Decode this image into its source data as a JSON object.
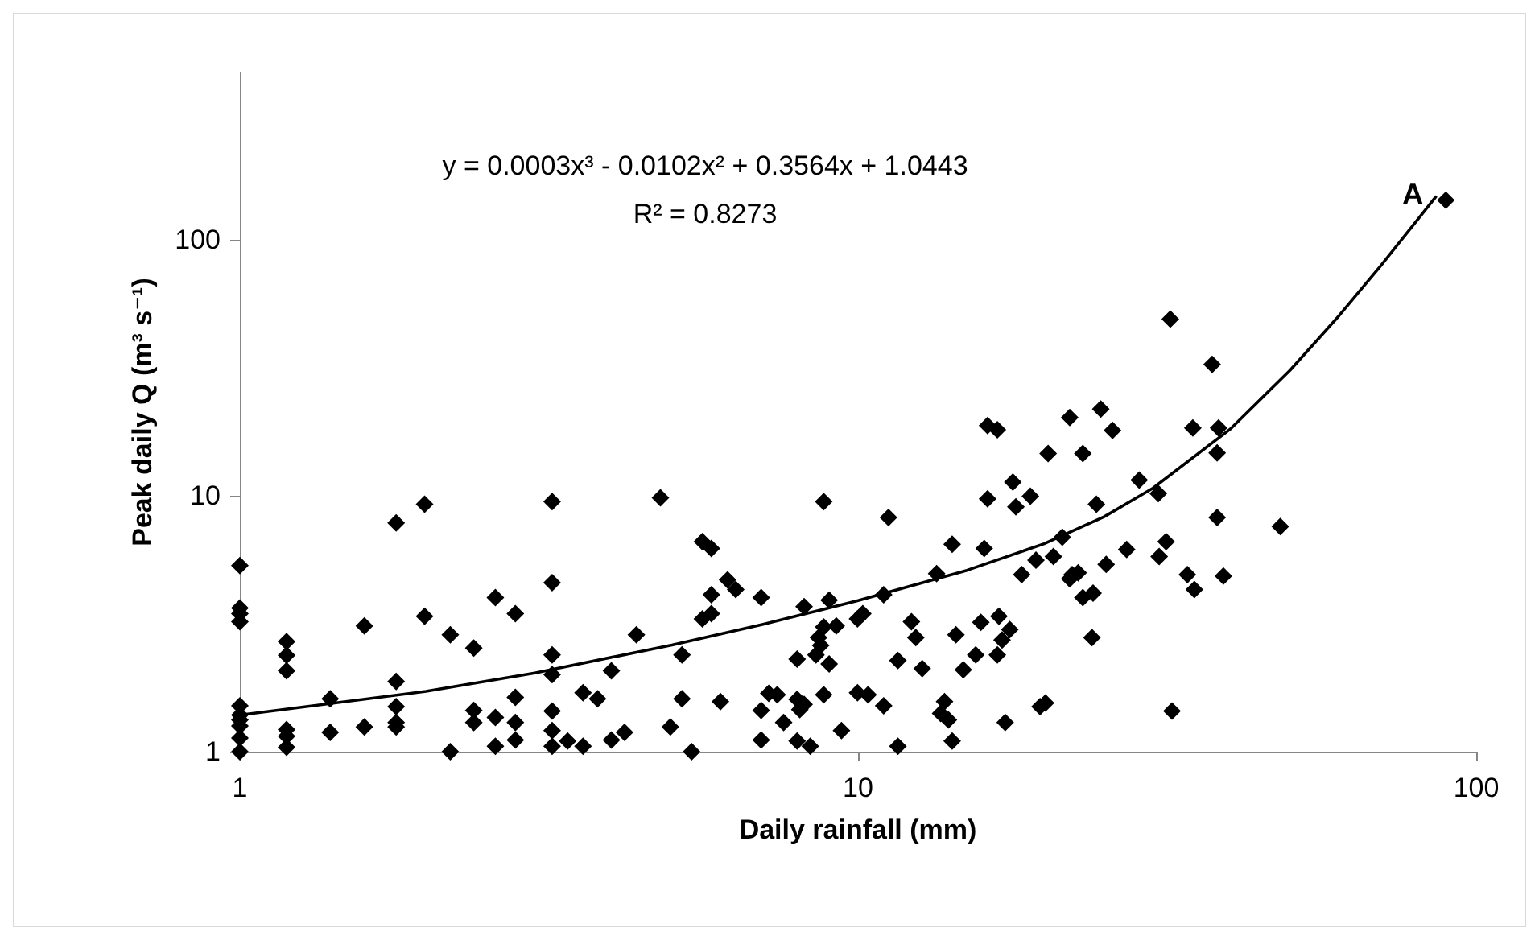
{
  "chart_data": {
    "type": "scatter",
    "xlabel": "Daily rainfall (mm)",
    "ylabel": "Peak daily Q (m³ s⁻¹)",
    "log": "xy",
    "xlim": [
      1,
      100
    ],
    "xticks": [
      1,
      10,
      100
    ],
    "ylim": [
      1,
      450
    ],
    "yticks": [
      1,
      10,
      100
    ],
    "grid": false,
    "annotations": [
      "y = 0.0003x³ - 0.0102x² + 0.3564x + 1.0443",
      "R² = 0.8273",
      {
        "text": "A",
        "x": 89.3,
        "y": 142.6
      }
    ],
    "series": [
      {
        "marker": "diamond",
        "color": "#000000",
        "x": [
          1,
          1,
          1,
          1,
          1,
          1,
          1,
          1,
          1,
          1,
          1.19,
          1.19,
          1.19,
          1.19,
          1.19,
          1.19,
          1.4,
          1.4,
          1.59,
          1.59,
          1.79,
          1.79,
          1.79,
          1.79,
          1.79,
          1.99,
          1.99,
          2.19,
          2.19,
          2.39,
          2.39,
          2.39,
          2.59,
          2.59,
          2.59,
          2.79,
          2.79,
          2.79,
          2.79,
          3.2,
          3.2,
          3.2,
          3.2,
          3.2,
          3.2,
          3.2,
          3.39,
          3.59,
          3.59,
          3.79,
          3.99,
          3.99,
          4.19,
          4.38,
          4.79,
          4.97,
          5.19,
          5.19,
          5.38,
          5.6,
          5.79,
          5.6,
          5.79,
          5.79,
          5.99,
          6.15,
          6.34,
          6.97,
          6.97,
          6.97,
          7.17,
          7.4,
          7.58,
          7.97,
          7.97,
          8.05,
          8.18,
          7.97,
          8.37,
          8.18,
          8.8,
          8.98,
          8.8,
          8.63,
          8.7,
          8.55,
          8.98,
          9.22,
          8.8,
          9.4,
          9.98,
          10.18,
          9.98,
          10.38,
          11,
          11,
          11.2,
          11.6,
          11.6,
          12.2,
          12.4,
          12.7,
          13.4,
          13.8,
          13.6,
          14,
          14.2,
          14.2,
          14.4,
          14.8,
          15.5,
          15.8,
          16,
          16.2,
          16.8,
          16.9,
          17.1,
          17.6,
          17.3,
          17.8,
          18,
          19,
          18.4,
          19.4,
          19.7,
          20.1,
          20.3,
          20.7,
          21.4,
          22.2,
          22.7,
          23.1,
          23.1,
          23.9,
          22,
          24,
          24.3,
          28.5,
          30.6,
          38.1,
          38.1,
          48.2,
          25.2,
          27.2,
          30.7,
          31.5,
          34.1,
          35,
          39,
          32.2,
          89.3,
          32,
          37.4,
          16.2,
          16.8,
          22,
          24.7,
          25.8,
          34.8,
          38.3
        ],
        "values": [
          5.33,
          3.64,
          3.46,
          3.22,
          1.51,
          1.39,
          1.33,
          1.26,
          1.13,
          1,
          2.69,
          2.38,
          2.07,
          1.22,
          1.15,
          1.04,
          1.61,
          1.19,
          3.1,
          1.25,
          7.83,
          1.88,
          1.5,
          1.3,
          1.25,
          9.26,
          3.38,
          2.86,
          1,
          2.54,
          1.45,
          1.3,
          4,
          1.36,
          1.05,
          3.46,
          1.63,
          1.3,
          1.11,
          9.48,
          4.57,
          2.39,
          2,
          1.44,
          1.21,
          1.05,
          1.1,
          1.7,
          1.05,
          1.61,
          2.07,
          1.11,
          1.19,
          2.86,
          9.81,
          1.25,
          2.39,
          1.61,
          1,
          6.62,
          6.22,
          3.3,
          3.46,
          4.1,
          1.57,
          4.69,
          4.3,
          4,
          1.45,
          1.11,
          1.69,
          1.67,
          1.3,
          2.3,
          1.6,
          1.46,
          1.53,
          1.1,
          1.05,
          3.69,
          9.48,
          3.91,
          3.07,
          2.79,
          2.6,
          2.39,
          2.2,
          3.1,
          1.67,
          1.21,
          3.3,
          3.46,
          1.7,
          1.67,
          4.1,
          1.51,
          8.22,
          2.27,
          1.05,
          3.22,
          2.79,
          2.11,
          4.96,
          1.57,
          1.41,
          1.33,
          1.1,
          6.46,
          2.86,
          2.09,
          2.39,
          3.2,
          6.22,
          9.72,
          2.39,
          3.38,
          2.73,
          3,
          1.3,
          11.3,
          9.04,
          9.95,
          4.92,
          5.6,
          1.5,
          1.55,
          14.6,
          5.79,
          6.88,
          4.92,
          5,
          14.6,
          4,
          2.79,
          4.73,
          4.16,
          9.26,
          11.5,
          10.2,
          14.7,
          8.22,
          7.57,
          5.39,
          6.16,
          5.79,
          6.62,
          4.92,
          4.3,
          4.85,
          1.44,
          142.6,
          48.9,
          32.6,
          18.8,
          18.1,
          20.2,
          21.8,
          18,
          18.4,
          18.4
        ]
      },
      {
        "type": "line",
        "marker": "none",
        "color": "#000000",
        "x": [
          1,
          2,
          3,
          5,
          7,
          10,
          15,
          20,
          25,
          30,
          40,
          50,
          60,
          70,
          80,
          86
        ],
        "values": [
          1.39,
          1.72,
          2.03,
          2.61,
          3.14,
          3.89,
          5.11,
          6.49,
          8.27,
          10.7,
          18.2,
          30.9,
          50.5,
          78.9,
          118,
          147
        ]
      }
    ]
  }
}
